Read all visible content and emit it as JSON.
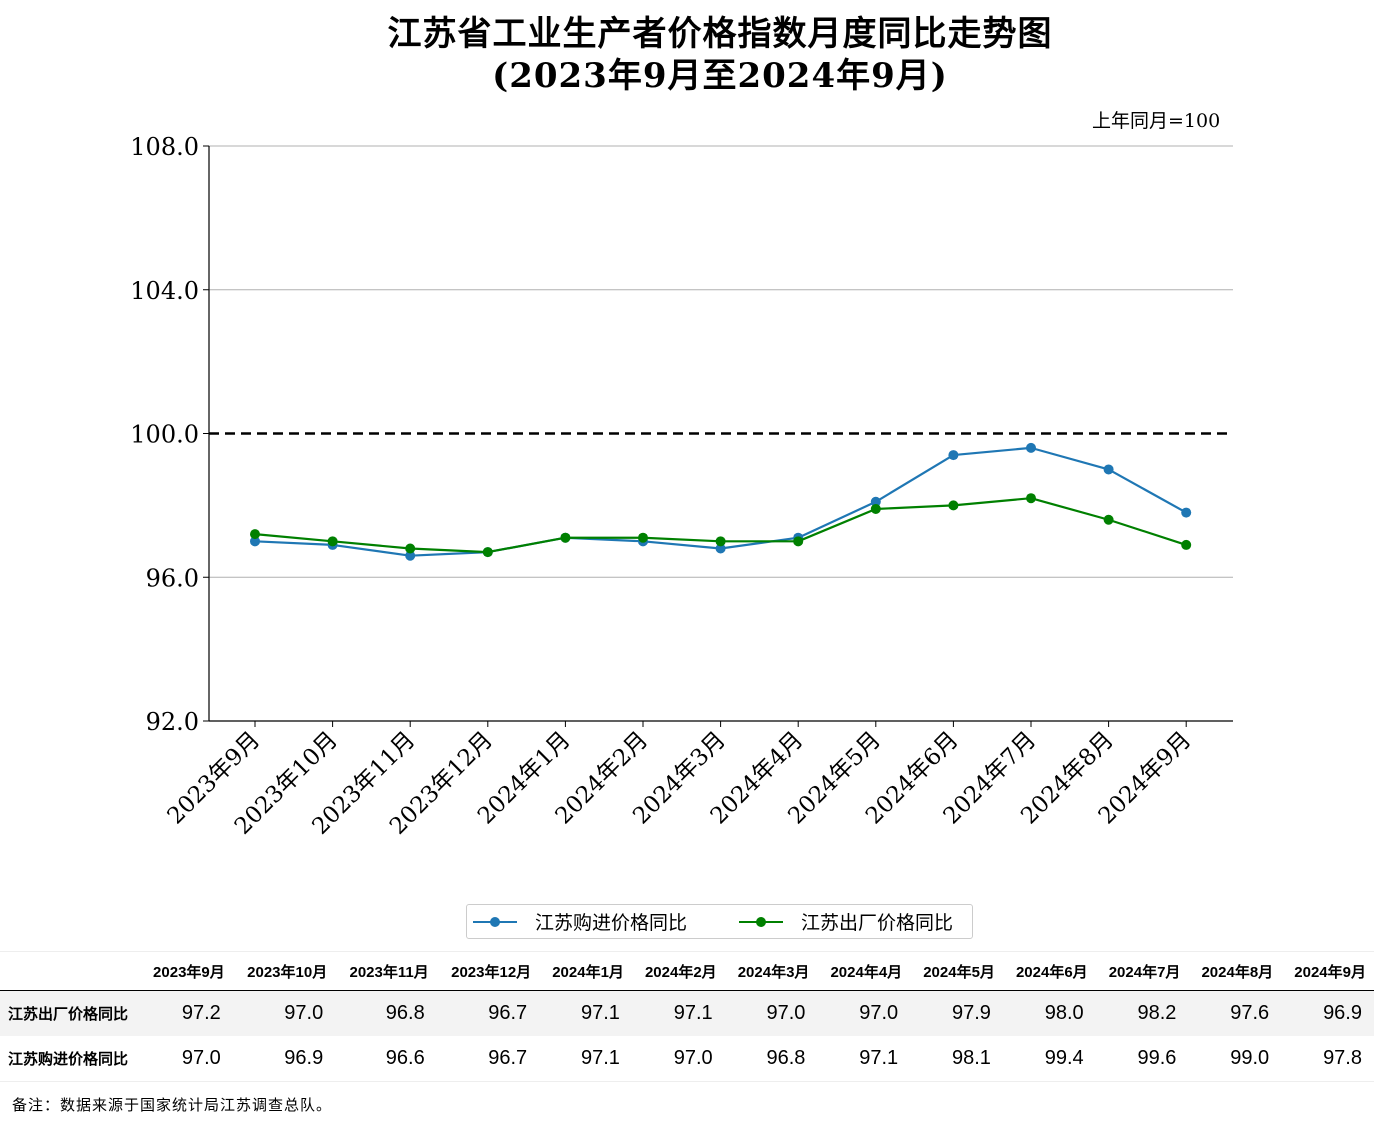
{
  "titles": {
    "line1": "江苏省工业生产者价格指数月度同比走势图",
    "line2": "(2023年9月至2024年9月)"
  },
  "unit_note": "上年同月=100",
  "colors": {
    "purchase": "#1f77b4",
    "exfactory": "#008000",
    "reference": "#000000",
    "grid": "#b0b0b0"
  },
  "chart_data": {
    "type": "line",
    "title": "江苏省工业生产者价格指数月度同比走势图",
    "subtitle": "(2023年9月至2024年9月)",
    "xlabel": "",
    "ylabel": "",
    "categories": [
      "2023年9月",
      "2023年10月",
      "2023年11月",
      "2023年12月",
      "2024年1月",
      "2024年2月",
      "2024年3月",
      "2024年4月",
      "2024年5月",
      "2024年6月",
      "2024年7月",
      "2024年8月",
      "2024年9月"
    ],
    "ylim": [
      92.0,
      108.0
    ],
    "yticks": [
      92.0,
      96.0,
      100.0,
      104.0,
      108.0
    ],
    "ytick_labels": [
      "92.0",
      "96.0",
      "100.0",
      "104.0",
      "108.0"
    ],
    "grid": "horizontal",
    "reference_line": 100.0,
    "legend_position": "bottom",
    "series": [
      {
        "name": "江苏购进价格同比",
        "color": "#1f77b4",
        "values": [
          97.0,
          96.9,
          96.6,
          96.7,
          97.1,
          97.0,
          96.8,
          97.1,
          98.1,
          99.4,
          99.6,
          99.0,
          97.8
        ]
      },
      {
        "name": "江苏出厂价格同比",
        "color": "#008000",
        "values": [
          97.2,
          97.0,
          96.8,
          96.7,
          97.1,
          97.1,
          97.0,
          97.0,
          97.9,
          98.0,
          98.2,
          97.6,
          96.9
        ]
      }
    ]
  },
  "table": {
    "headers": [
      "2023年9月",
      "2023年10月",
      "2023年11月",
      "2023年12月",
      "2024年1月",
      "2024年2月",
      "2024年3月",
      "2024年4月",
      "2024年5月",
      "2024年6月",
      "2024年7月",
      "2024年8月",
      "2024年9月"
    ],
    "rows": [
      {
        "label": "江苏出厂价格同比",
        "values": [
          "97.2",
          "97.0",
          "96.8",
          "96.7",
          "97.1",
          "97.1",
          "97.0",
          "97.0",
          "97.9",
          "98.0",
          "98.2",
          "97.6",
          "96.9"
        ]
      },
      {
        "label": "江苏购进价格同比",
        "values": [
          "97.0",
          "96.9",
          "96.6",
          "96.7",
          "97.1",
          "97.0",
          "96.8",
          "97.1",
          "98.1",
          "99.4",
          "99.6",
          "99.0",
          "97.8"
        ]
      }
    ]
  },
  "footnote": "备注：数据来源于国家统计局江苏调查总队。"
}
